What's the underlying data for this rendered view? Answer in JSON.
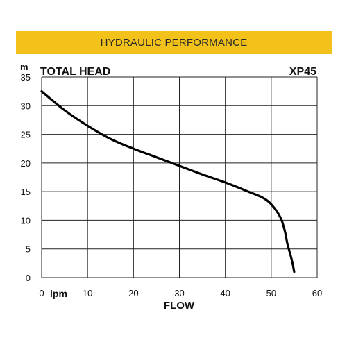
{
  "banner": {
    "title": "HYDRAULIC PERFORMANCE",
    "color": "#f2c21b"
  },
  "chart_data": {
    "type": "line",
    "title": "TOTAL HEAD",
    "model": "XP45",
    "xlabel": "FLOW",
    "x_unit": "lpm",
    "y_unit": "m",
    "xlim": [
      0,
      60
    ],
    "ylim": [
      0,
      35
    ],
    "x_ticks": [
      0,
      10,
      20,
      30,
      40,
      50,
      60
    ],
    "y_ticks": [
      0,
      5,
      10,
      15,
      20,
      25,
      30,
      35
    ],
    "grid": true,
    "series": [
      {
        "color": "#000000",
        "x": [
          0,
          5,
          10,
          15,
          20,
          25,
          30,
          35,
          40,
          45,
          48,
          50,
          52,
          53,
          53.5,
          54.5,
          55
        ],
        "y": [
          32.5,
          29.2,
          26.5,
          24.2,
          22.5,
          21.0,
          19.5,
          18.0,
          16.6,
          15.0,
          14.0,
          12.8,
          10.5,
          8.0,
          6.0,
          3.0,
          1.0
        ]
      }
    ]
  }
}
